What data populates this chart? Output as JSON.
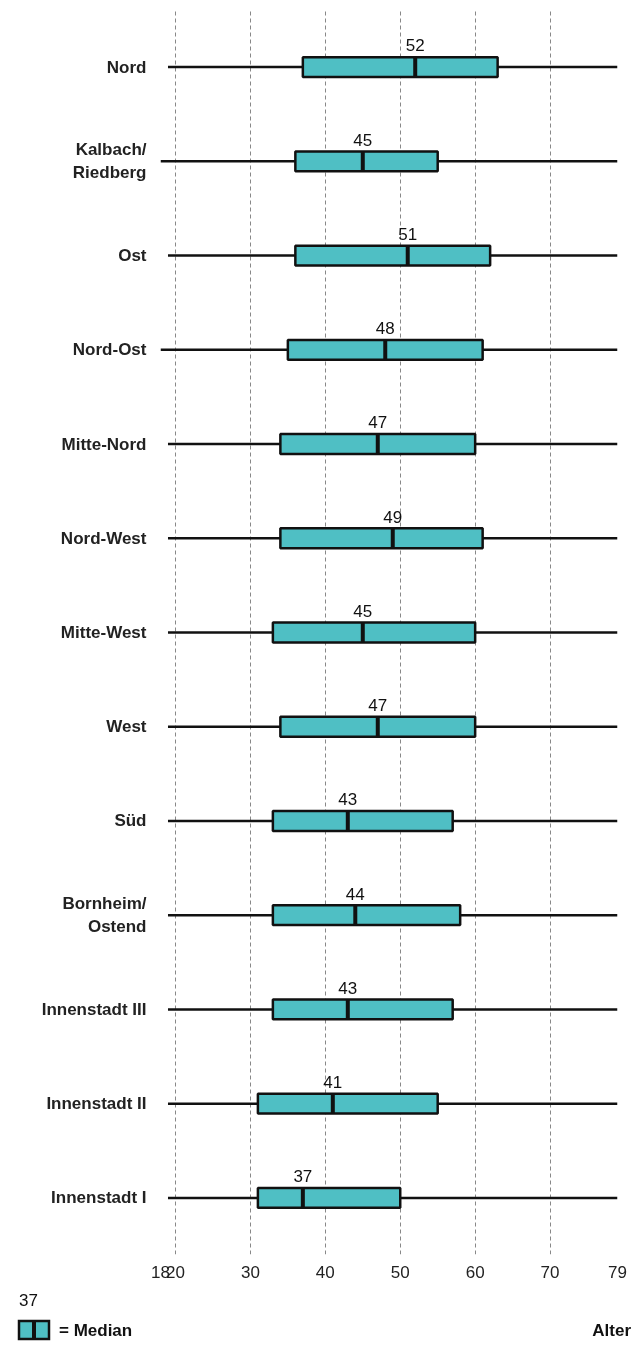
{
  "chart_data": {
    "type": "box",
    "categories": [
      "Nord",
      "Kalbach/Riedberg",
      "Ost",
      "Nord-Ost",
      "Mitte-Nord",
      "Nord-West",
      "Mitte-West",
      "West",
      "Süd",
      "Bornheim/Ostend",
      "Innenstadt III",
      "Innenstadt II",
      "Innenstadt I"
    ],
    "boxes": [
      {
        "low": 19,
        "q1": 37,
        "median": 52,
        "q3": 63,
        "high": 79
      },
      {
        "low": 18,
        "q1": 36,
        "median": 45,
        "q3": 55,
        "high": 79
      },
      {
        "low": 19,
        "q1": 36,
        "median": 51,
        "q3": 62,
        "high": 79
      },
      {
        "low": 18,
        "q1": 35,
        "median": 48,
        "q3": 61,
        "high": 79
      },
      {
        "low": 19,
        "q1": 34,
        "median": 47,
        "q3": 60,
        "high": 79
      },
      {
        "low": 19,
        "q1": 34,
        "median": 49,
        "q3": 61,
        "high": 79
      },
      {
        "low": 19,
        "q1": 33,
        "median": 45,
        "q3": 60,
        "high": 79
      },
      {
        "low": 19,
        "q1": 34,
        "median": 47,
        "q3": 60,
        "high": 79
      },
      {
        "low": 19,
        "q1": 33,
        "median": 43,
        "q3": 57,
        "high": 79
      },
      {
        "low": 19,
        "q1": 33,
        "median": 44,
        "q3": 58,
        "high": 79
      },
      {
        "low": 19,
        "q1": 33,
        "median": 43,
        "q3": 57,
        "high": 79
      },
      {
        "low": 19,
        "q1": 31,
        "median": 41,
        "q3": 55,
        "high": 79
      },
      {
        "low": 19,
        "q1": 31,
        "median": 37,
        "q3": 50,
        "high": 79
      }
    ],
    "color": "#4fbfc4",
    "xlabel": "Alter",
    "xlim": [
      18,
      79
    ],
    "xticks": [
      18,
      20,
      30,
      40,
      50,
      60,
      70,
      79
    ],
    "grid": "x",
    "orientation": "horizontal",
    "annotations": [
      "37",
      "= Median",
      {
        "text": "52",
        "x": 52,
        "y": "Nord"
      },
      {
        "text": "45",
        "x": 45,
        "y": "Kalbach/Riedberg"
      },
      {
        "text": "51",
        "x": 51,
        "y": "Ost"
      },
      {
        "text": "48",
        "x": 48,
        "y": "Nord-Ost"
      },
      {
        "text": "47",
        "x": 47,
        "y": "Mitte-Nord"
      },
      {
        "text": "49",
        "x": 49,
        "y": "Nord-West"
      },
      {
        "text": "45",
        "x": 45,
        "y": "Mitte-West"
      },
      {
        "text": "47",
        "x": 47,
        "y": "West"
      },
      {
        "text": "43",
        "x": 43,
        "y": "Süd"
      },
      {
        "text": "44",
        "x": 44,
        "y": "Bornheim/Ostend"
      },
      {
        "text": "43",
        "x": 43,
        "y": "Innenstadt III"
      },
      {
        "text": "41",
        "x": 41,
        "y": "Innenstadt II"
      },
      {
        "text": "37",
        "x": 37,
        "y": "Innenstadt I"
      }
    ]
  }
}
